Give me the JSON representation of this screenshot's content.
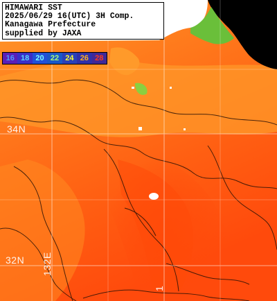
{
  "title_block": {
    "line1": "HIMAWARI SST",
    "line2": "2025/06/29 16(UTC) 3H Comp.",
    "line3": "Kanagawa Prefecture",
    "line4": "supplied by JAXA"
  },
  "legend": {
    "items": [
      {
        "label": "16",
        "color": "#5a1fb8",
        "text_color": "#4a9cff"
      },
      {
        "label": "18",
        "color": "#3a2fc8",
        "text_color": "#5ad8ff"
      },
      {
        "label": "20",
        "color": "#2250d8",
        "text_color": "#7affff"
      },
      {
        "label": "22",
        "color": "#1a58c8",
        "text_color": "#a8ff7a"
      },
      {
        "label": "24",
        "color": "#2a40b8",
        "text_color": "#ffff30"
      },
      {
        "label": "26",
        "color": "#3030a8",
        "text_color": "#ffb020"
      },
      {
        "label": "28",
        "color": "#402898",
        "text_color": "#ff3a1a"
      }
    ]
  },
  "grid_labels": {
    "lat_north": "34N",
    "lat_south": "32N",
    "lon_left": "132E",
    "lon_right": "1"
  },
  "colors": {
    "land": "#000000",
    "sst_warm": "#ff5a10",
    "sst_mid": "#ff7a1a",
    "sst_cool": "#ff9a28",
    "coast_green": "#6abf3a",
    "no_data": "#ffffff"
  }
}
